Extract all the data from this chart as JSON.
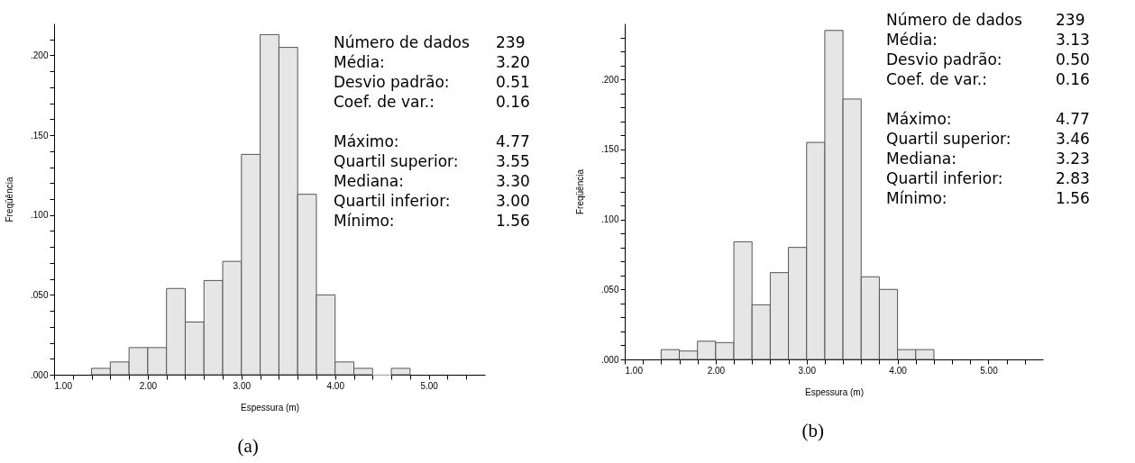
{
  "chart_data": [
    {
      "type": "histogram",
      "bins": [
        1.4,
        1.6,
        1.8,
        2.0,
        2.2,
        2.4,
        2.6,
        2.8,
        3.0,
        3.2,
        3.4,
        3.6,
        3.8,
        4.0,
        4.2,
        4.4,
        4.6,
        4.8
      ],
      "values": [
        0.004,
        0.008,
        0.017,
        0.017,
        0.054,
        0.033,
        0.059,
        0.071,
        0.138,
        0.213,
        0.205,
        0.113,
        0.05,
        0.008,
        0.004,
        0,
        0.004
      ],
      "color": "#e6e6e6",
      "xlabel": "Espessura (m)",
      "ylabel": "Freqüência",
      "xlim": [
        1.0,
        5.6
      ],
      "ylim": [
        0,
        0.22
      ],
      "xticks": [
        {
          "value": 1.0,
          "label": "1.00"
        },
        {
          "value": 1.2,
          "label": null
        },
        {
          "value": 1.4,
          "label": null
        },
        {
          "value": 1.6,
          "label": null
        },
        {
          "value": 1.8,
          "label": null
        },
        {
          "value": 2.0,
          "label": "2.00"
        },
        {
          "value": 2.2,
          "label": null
        },
        {
          "value": 2.4,
          "label": null
        },
        {
          "value": 2.6,
          "label": null
        },
        {
          "value": 2.8,
          "label": null
        },
        {
          "value": 3.0,
          "label": "3.00"
        },
        {
          "value": 3.2,
          "label": null
        },
        {
          "value": 3.4,
          "label": null
        },
        {
          "value": 3.6,
          "label": null
        },
        {
          "value": 3.8,
          "label": null
        },
        {
          "value": 4.0,
          "label": "4.00"
        },
        {
          "value": 4.2,
          "label": null
        },
        {
          "value": 4.4,
          "label": null
        },
        {
          "value": 4.6,
          "label": null
        },
        {
          "value": 4.8,
          "label": null
        },
        {
          "value": 5.0,
          "label": "5.00"
        },
        {
          "value": 5.2,
          "label": null
        },
        {
          "value": 5.4,
          "label": null
        }
      ],
      "yticks": [
        {
          "value": 0,
          "label": ".000"
        },
        {
          "value": 0.01,
          "label": null
        },
        {
          "value": 0.02,
          "label": null
        },
        {
          "value": 0.03,
          "label": null
        },
        {
          "value": 0.04,
          "label": null
        },
        {
          "value": 0.05,
          "label": ".050"
        },
        {
          "value": 0.06,
          "label": null
        },
        {
          "value": 0.07,
          "label": null
        },
        {
          "value": 0.08,
          "label": null
        },
        {
          "value": 0.09,
          "label": null
        },
        {
          "value": 0.1,
          "label": ".100"
        },
        {
          "value": 0.11,
          "label": null
        },
        {
          "value": 0.12,
          "label": null
        },
        {
          "value": 0.13,
          "label": null
        },
        {
          "value": 0.14,
          "label": null
        },
        {
          "value": 0.15,
          "label": ".150"
        },
        {
          "value": 0.16,
          "label": null
        },
        {
          "value": 0.17,
          "label": null
        },
        {
          "value": 0.18,
          "label": null
        },
        {
          "value": 0.19,
          "label": null
        },
        {
          "value": 0.2,
          "label": ".200"
        },
        {
          "value": 0.21,
          "label": null
        }
      ],
      "annotations": [
        "Número de dados",
        "239",
        "Média:",
        "3.20",
        "Desvio padrão:",
        "0.51",
        "Coef. de var.:",
        "0.16",
        "Máximo:",
        "4.77",
        "Quartil superior:",
        "3.55",
        "Mediana:",
        "3.30",
        "Quartil inferior:",
        "3.00",
        "Mínimo:",
        "1.56",
        "(a)"
      ]
    },
    {
      "type": "histogram",
      "bins": [
        1.4,
        1.6,
        1.8,
        2.0,
        2.2,
        2.4,
        2.6,
        2.8,
        3.0,
        3.2,
        3.4,
        3.6,
        3.8,
        4.0,
        4.2,
        4.4
      ],
      "values": [
        0.007,
        0.006,
        0.013,
        0.012,
        0.084,
        0.039,
        0.062,
        0.08,
        0.155,
        0.235,
        0.186,
        0.059,
        0.05,
        0.007,
        0.007
      ],
      "color": "#e6e6e6",
      "xlabel": "Espessura (m)",
      "ylabel": "Freqüência",
      "xlim": [
        1.0,
        5.6
      ],
      "ylim": [
        0,
        0.24
      ],
      "xticks": [
        {
          "value": 1.0,
          "label": "1.00"
        },
        {
          "value": 1.2,
          "label": null
        },
        {
          "value": 1.4,
          "label": null
        },
        {
          "value": 1.6,
          "label": null
        },
        {
          "value": 1.8,
          "label": null
        },
        {
          "value": 2.0,
          "label": "2.00"
        },
        {
          "value": 2.2,
          "label": null
        },
        {
          "value": 2.4,
          "label": null
        },
        {
          "value": 2.6,
          "label": null
        },
        {
          "value": 2.8,
          "label": null
        },
        {
          "value": 3.0,
          "label": "3.00"
        },
        {
          "value": 3.2,
          "label": null
        },
        {
          "value": 3.4,
          "label": null
        },
        {
          "value": 3.6,
          "label": null
        },
        {
          "value": 3.8,
          "label": null
        },
        {
          "value": 4.0,
          "label": "4.00"
        },
        {
          "value": 4.2,
          "label": null
        },
        {
          "value": 4.4,
          "label": null
        },
        {
          "value": 4.6,
          "label": null
        },
        {
          "value": 4.8,
          "label": null
        },
        {
          "value": 5.0,
          "label": "5.00"
        },
        {
          "value": 5.2,
          "label": null
        },
        {
          "value": 5.4,
          "label": null
        }
      ],
      "yticks": [
        {
          "value": 0,
          "label": ".000"
        },
        {
          "value": 0.01,
          "label": null
        },
        {
          "value": 0.02,
          "label": null
        },
        {
          "value": 0.03,
          "label": null
        },
        {
          "value": 0.04,
          "label": null
        },
        {
          "value": 0.05,
          "label": ".050"
        },
        {
          "value": 0.06,
          "label": null
        },
        {
          "value": 0.07,
          "label": null
        },
        {
          "value": 0.08,
          "label": null
        },
        {
          "value": 0.09,
          "label": null
        },
        {
          "value": 0.1,
          "label": ".100"
        },
        {
          "value": 0.11,
          "label": null
        },
        {
          "value": 0.12,
          "label": null
        },
        {
          "value": 0.13,
          "label": null
        },
        {
          "value": 0.14,
          "label": null
        },
        {
          "value": 0.15,
          "label": ".150"
        },
        {
          "value": 0.16,
          "label": null
        },
        {
          "value": 0.17,
          "label": null
        },
        {
          "value": 0.18,
          "label": null
        },
        {
          "value": 0.19,
          "label": null
        },
        {
          "value": 0.2,
          "label": ".200"
        },
        {
          "value": 0.21,
          "label": null
        },
        {
          "value": 0.22,
          "label": null
        },
        {
          "value": 0.23,
          "label": null
        }
      ],
      "annotations": [
        "Número de dados",
        "239",
        "Média:",
        "3.13",
        "Desvio padrão:",
        "0.50",
        "Coef. de var.:",
        "0.16",
        "Máximo:",
        "4.77",
        "Quartil superior:",
        "3.46",
        "Mediana:",
        "3.23",
        "Quartil inferior:",
        "2.83",
        "Mínimo:",
        "1.56",
        "(b)"
      ]
    }
  ]
}
